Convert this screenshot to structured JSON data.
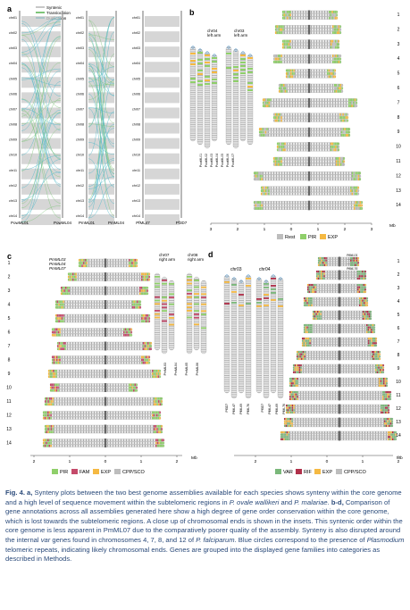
{
  "colors": {
    "caption_text": "#2a4a7a",
    "synteny": "#c8c8c8",
    "translocation": "#7fc67a",
    "duplication": "#4db8c8",
    "rest": "#bdbdbd",
    "pir": "#8fcf6a",
    "exp": "#f5b942",
    "fam": "#c44a6a",
    "var": "#7ab87a",
    "rif": "#b0304a"
  },
  "panel_a": {
    "label": "a",
    "legend": [
      "Syntenic",
      "Translocation",
      "Duplication"
    ],
    "chromosomes": [
      "chr01",
      "chr02",
      "chr03",
      "chr04",
      "chr05",
      "chr06",
      "chr07",
      "chr08",
      "chr09",
      "chr10",
      "chr11",
      "chr12",
      "chr13",
      "chr14"
    ],
    "col1": "PowML01",
    "col2": "PowML04",
    "col3": "PmML01",
    "col4": "PmML04",
    "col5": "PfML47",
    "col6": "Pf3D7"
  },
  "panel_b": {
    "label": "b",
    "inset_left": "chr04\nleft arm",
    "inset_left_l1": "chr04",
    "inset_left_l2": "left arm",
    "inset_right_l1": "chr03",
    "inset_right_l2": "left arm",
    "inset_names": [
      "PowML01",
      "PowML02",
      "PowML03",
      "PowML04",
      "PowML05",
      "PowML06",
      "PowML07"
    ],
    "rows": [
      "1",
      "2",
      "3",
      "4",
      "5",
      "6",
      "7",
      "8",
      "9",
      "10",
      "11",
      "12",
      "13",
      "14"
    ],
    "ticks": [
      "3",
      "2",
      "1",
      "0",
      "1",
      "2",
      "3"
    ],
    "unit": "Mb",
    "legend": [
      "Rest",
      "PIR",
      "EXP"
    ]
  },
  "panel_c": {
    "label": "c",
    "series": [
      "PmML03",
      "PmML04",
      "PmML07"
    ],
    "inset_left_l1": "chr07",
    "inset_left_l2": "right arm",
    "inset_right_l1": "chr08",
    "inset_right_l2": "right arm",
    "inset_names": [
      "PmML03",
      "PmML04",
      "PmML05",
      "PmML06"
    ],
    "rows": [
      "1",
      "2",
      "3",
      "4",
      "5",
      "6",
      "7",
      "8",
      "9",
      "10",
      "11",
      "12",
      "13",
      "14"
    ],
    "ticks": [
      "2",
      "1",
      "0",
      "1",
      "2"
    ],
    "unit": "Mb",
    "legend": [
      "PIR",
      "FAM",
      "EXP",
      "CPP/SCO"
    ]
  },
  "panel_d": {
    "label": "d",
    "series": [
      "PfML01",
      "PfML47",
      "PfML69",
      "PfML76"
    ],
    "inset_left": "chr03",
    "inset_right": "chr04",
    "inset_names": [
      "Pf3D7",
      "PfML47",
      "PfML69",
      "PfML76"
    ],
    "rows": [
      "1",
      "2",
      "3",
      "4",
      "5",
      "6",
      "7",
      "8",
      "9",
      "10",
      "11",
      "12",
      "13",
      "14"
    ],
    "ticks": [
      "2",
      "1",
      "0",
      "1",
      "2"
    ],
    "unit": "Mb",
    "legend": [
      "VAR",
      "RIF",
      "EXP",
      "CPP/SCO"
    ]
  },
  "caption": {
    "lead": "Fig. 4. a,",
    "p1": " Synteny plots between the two best genome assemblies available for each species shows synteny within the core genome and a high level of sequence movement within the subtelomeric regions in ",
    "sp1": "P. ovale wallikeri",
    "p2": " and ",
    "sp2": "P. malariae",
    "p3": ". ",
    "bd": "b-d,",
    "p4": " Comparison of gene annotations across all assemblies generated here show a high degree of gene order conservation within the core genome, which is lost towards the subtelomeric regions. A close up of chromosomal ends is shown in the insets. This syntenic order within the core genome is less apparent in PmML07 due to the comparatively poorer quality of the assembly. Synteny is also disrupted around the internal ",
    "var": "var",
    "p5": " genes found in chromosomes 4, 7, 8, and 12 of ",
    "sp3": "P. falciparum",
    "p6": ". Blue circles correspond to the presence of ",
    "sp4": "Plasmodium",
    "p7": " telomeric repeats, indicating likely chromosomal ends. Genes are grouped into the displayed gene families into categories as described in Methods."
  }
}
